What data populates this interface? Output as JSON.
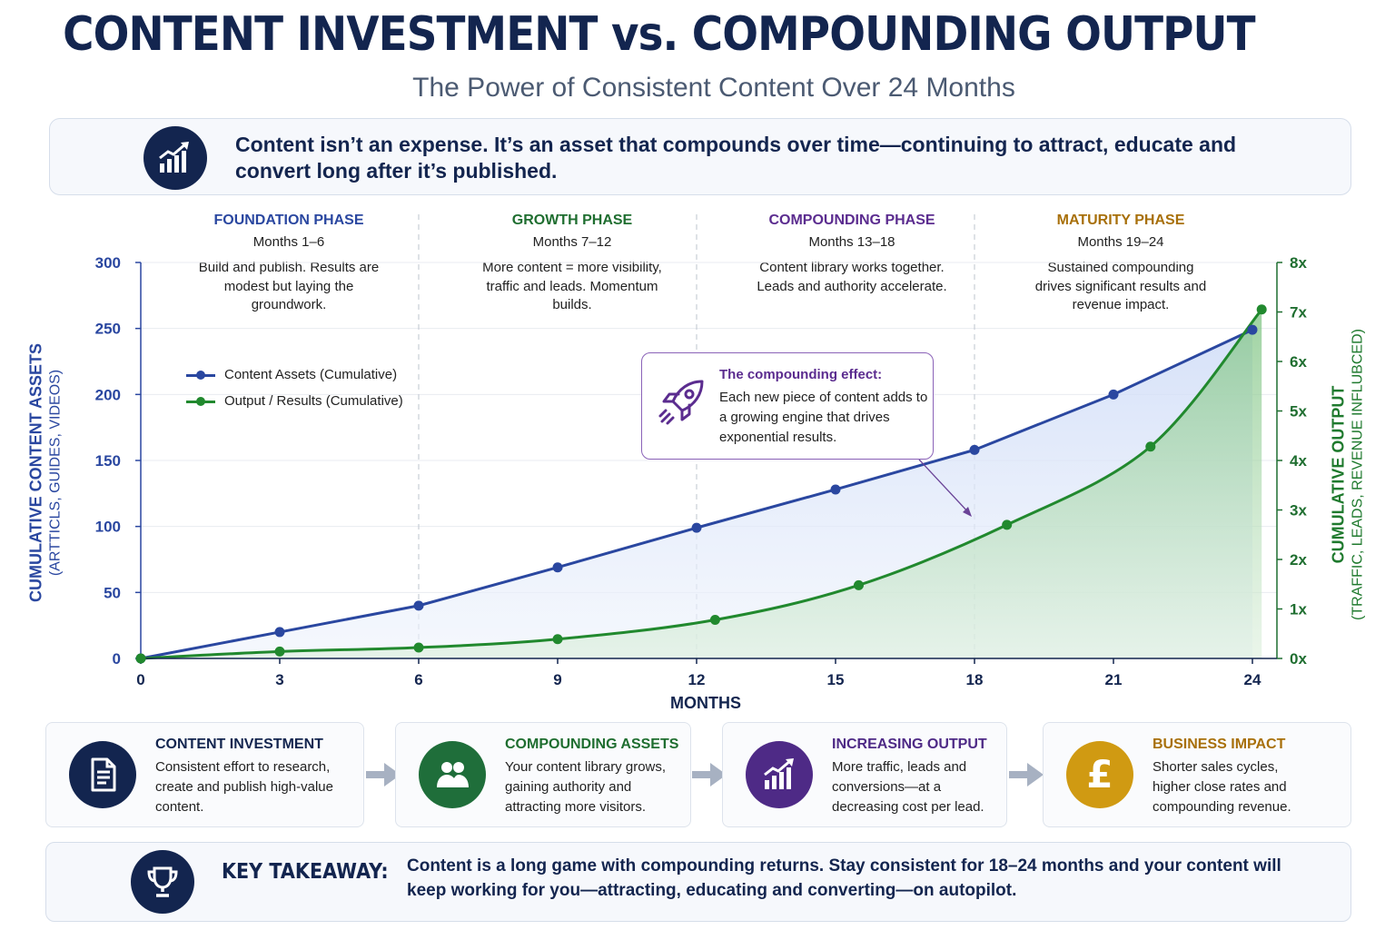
{
  "header": {
    "title": "CONTENT INVESTMENT vs. COMPOUNDING OUTPUT",
    "subtitle": "The Power of Consistent Content Over 24 Months"
  },
  "intro": {
    "icon": "chart-growth-icon",
    "text": "Content isn’t an expense. It’s an asset that compounds over time—continuing to attract, educate and convert long after it’s published."
  },
  "phases": [
    {
      "name": "FOUNDATION PHASE",
      "months": "Months 1–6",
      "desc": "Build and publish. Results are modest but laying the groundwork.",
      "color": "#2a47a0"
    },
    {
      "name": "GROWTH PHASE",
      "months": "Months 7–12",
      "desc": "More content = more visibility, traffic and leads. Momentum builds.",
      "color": "#1f6e30"
    },
    {
      "name": "COMPOUNDING PHASE",
      "months": "Months 13–18",
      "desc": "Content library works together. Leads and authority accelerate.",
      "color": "#5b2c8f"
    },
    {
      "name": "MATURITY PHASE",
      "months": "Months 19–24",
      "desc": "Sustained compounding drives significant results and revenue impact.",
      "color": "#a8700a"
    }
  ],
  "legend": {
    "assets": "Content Assets (Cumulative)",
    "output": "Output / Results (Cumulative)"
  },
  "callout": {
    "icon": "rocket-icon",
    "title": "The compounding effect:",
    "text": "Each new piece of content adds to a growing engine that drives exponential results."
  },
  "chart_data": {
    "type": "line",
    "xlabel": "MONTHS",
    "x_ticks": [
      0,
      3,
      6,
      9,
      12,
      15,
      18,
      21,
      24
    ],
    "xlim": [
      0,
      24
    ],
    "y_left": {
      "label_line1": "CUMULATIVE CONTENT ASSETS",
      "label_line2": "(ARTTICLS, GUIDES, VIDEOS)",
      "ticks": [
        0,
        50,
        100,
        150,
        200,
        250,
        300
      ],
      "ylim": [
        0,
        300
      ]
    },
    "y_right": {
      "label_line1": "CUMULATIVE OUTPUT",
      "label_line2": "(TRAFFIC, LEADS, REVENUE INFLUBCED)",
      "ticks": [
        "0x",
        "1x",
        "2x",
        "3x",
        "4x",
        "5x",
        "6x",
        "7x",
        "8x"
      ],
      "ylim": [
        0,
        8
      ]
    },
    "grid": true,
    "legend_position": "upper-left",
    "series": [
      {
        "name": "Content Assets (Cumulative)",
        "axis": "left",
        "color": "#2a47a0",
        "x": [
          0,
          3,
          6,
          9,
          12,
          15,
          18,
          21,
          24
        ],
        "y": [
          0,
          20,
          40,
          69,
          99,
          128,
          158,
          200,
          249
        ],
        "markers": [
          1,
          1,
          1,
          1,
          1,
          1,
          1,
          1,
          1
        ]
      },
      {
        "name": "Output / Results (Cumulative)",
        "axis": "right",
        "color": "#21892e",
        "x": [
          0,
          3,
          6,
          9,
          12.4,
          15.5,
          18.7,
          21.8,
          24.2
        ],
        "y": [
          0,
          0.14,
          0.22,
          0.39,
          0.78,
          1.48,
          2.7,
          4.28,
          7.05
        ],
        "markers": [
          1,
          1,
          1,
          1,
          1,
          1,
          1,
          1,
          1
        ]
      }
    ],
    "phase_dividers": [
      6,
      12,
      18
    ]
  },
  "steps": [
    {
      "title": "CONTENT INVESTMENT",
      "desc": "Consistent effort to research, create and publish high-value content.",
      "color": "#13254f",
      "title_color": "#13254f",
      "icon": "document-icon"
    },
    {
      "title": "COMPOUNDING ASSETS",
      "desc": "Your content library grows, gaining authority and attracting more visitors.",
      "color": "#1f6e3a",
      "title_color": "#1f6e30",
      "icon": "users-icon"
    },
    {
      "title": "INCREASING OUTPUT",
      "desc": "More traffic, leads and conversions—at a decreasing cost per lead.",
      "color": "#4e2a86",
      "title_color": "#4e2a86",
      "icon": "growth-chart-icon"
    },
    {
      "title": "BUSINESS IMPACT",
      "desc": "Shorter sales cycles, higher close rates and compounding revenue.",
      "color": "#d09a12",
      "title_color": "#a8700a",
      "icon": "pound-icon",
      "icon_text": "£"
    }
  ],
  "takeaway": {
    "icon": "trophy-icon",
    "label": "KEY TAKEAWAY:",
    "text": "Content is a long game with compounding returns. Stay consistent for 18–24 months and your content will keep working for you—attracting, educating and converting—on autopilot."
  }
}
